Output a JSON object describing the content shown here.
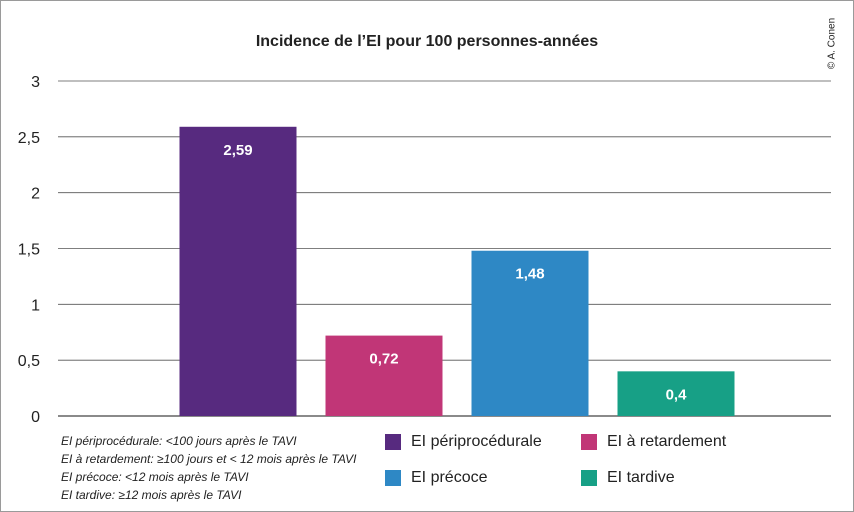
{
  "chart_data": {
    "type": "bar",
    "title": "Incidence de l’EI pour 100 personnes-années",
    "categories": [
      "EI périprocédurale",
      "EI à retardement",
      "EI précoce",
      "EI tardive"
    ],
    "values": [
      2.59,
      0.72,
      1.48,
      0.4
    ],
    "value_labels": [
      "2,59",
      "0,72",
      "1,48",
      "0,4"
    ],
    "colors": [
      "#572a7f",
      "#c13677",
      "#2e88c5",
      "#17a086"
    ],
    "ylim": [
      0,
      3
    ],
    "yticks": [
      0,
      0.5,
      1,
      1.5,
      2,
      2.5,
      3
    ],
    "ytick_labels": [
      "0",
      "0,5",
      "1",
      "1,5",
      "2",
      "2,5",
      "3"
    ],
    "grid": true,
    "legend_placement": "bottom-right"
  },
  "copyright": "© A. Conen",
  "notes": [
    "EI périprocédurale: <100 jours après le TAVI",
    "EI à retardement: ≥100 jours et < 12 mois après le TAVI",
    "EI précoce: <12 mois après le TAVI",
    "EI tardive: ≥12 mois après le TAVI"
  ]
}
